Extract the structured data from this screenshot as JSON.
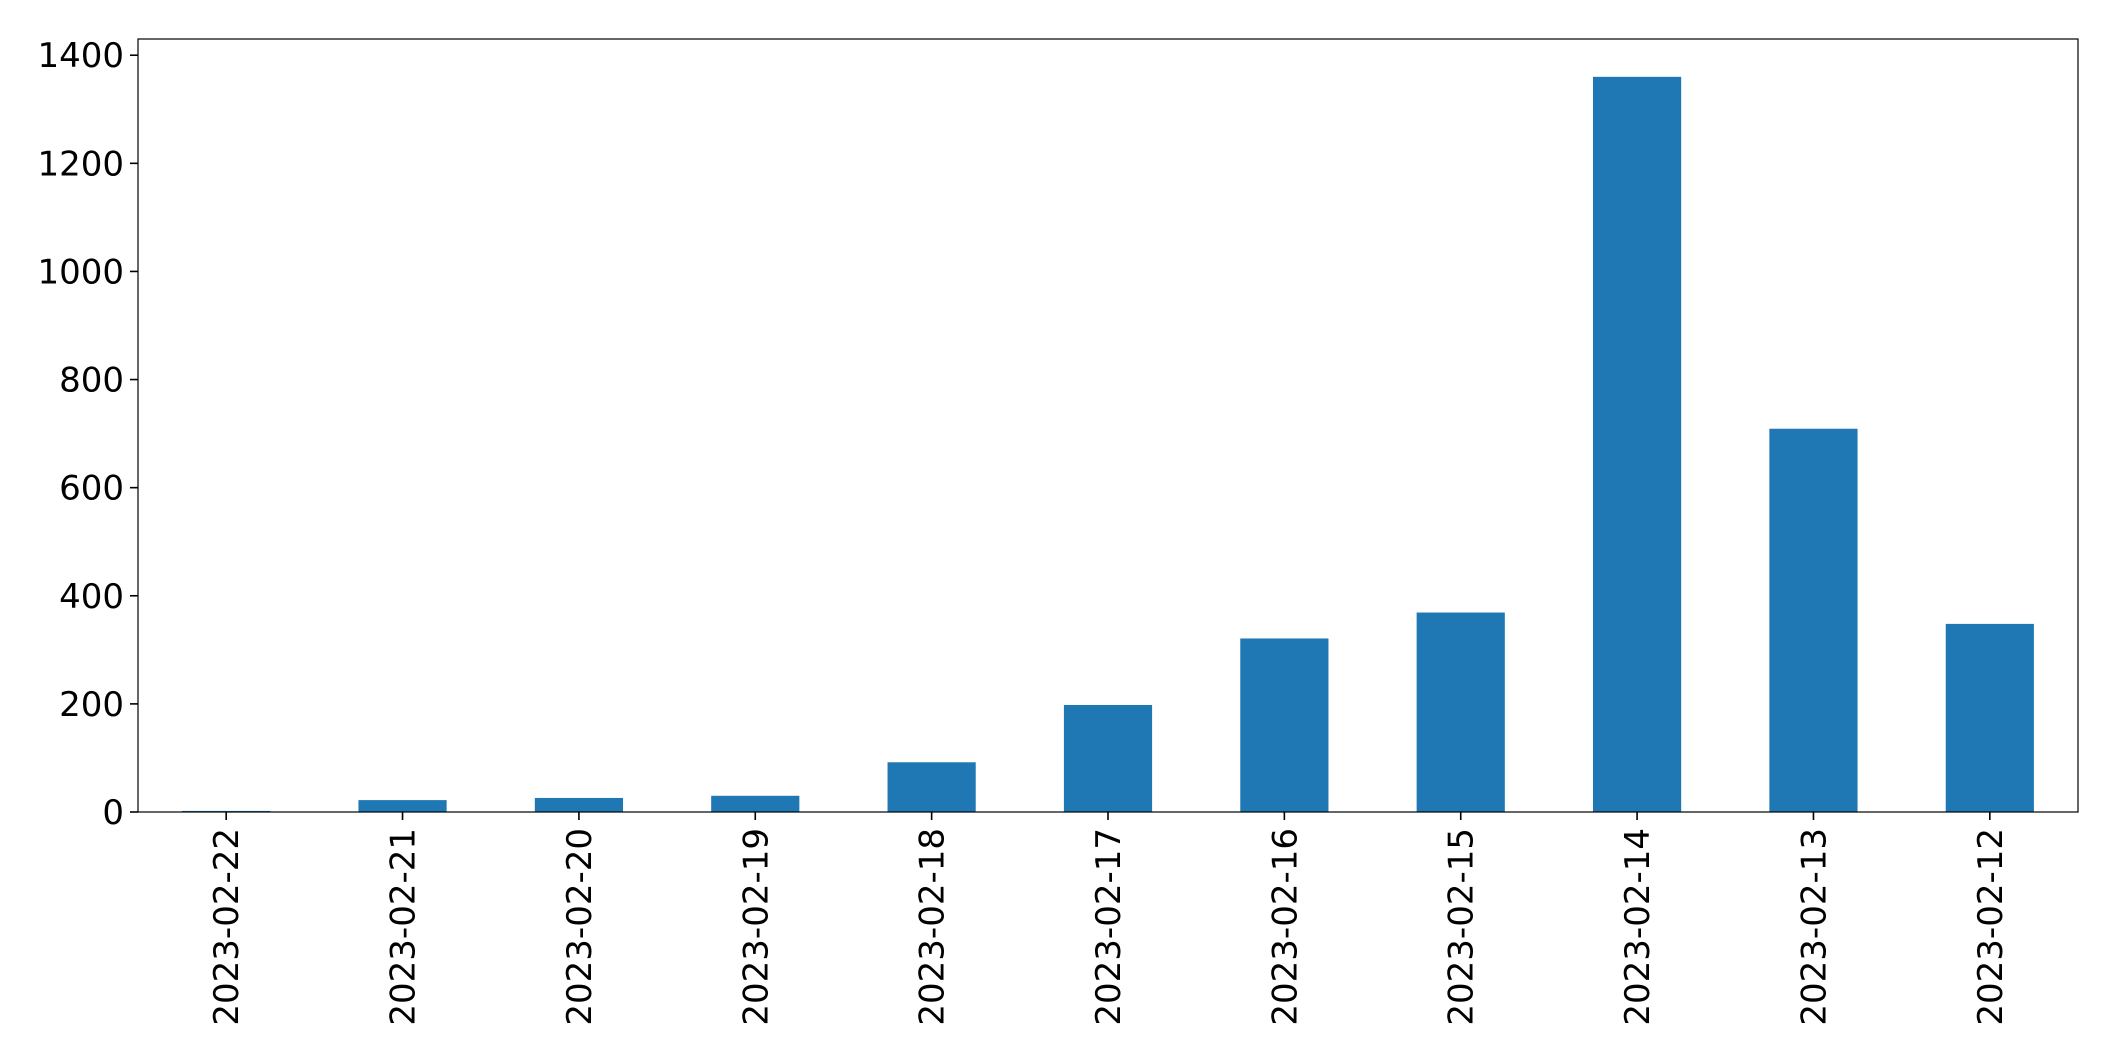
{
  "chart_data": {
    "type": "bar",
    "title": "",
    "xlabel": "",
    "ylabel": "",
    "categories": [
      "2023-02-22",
      "2023-02-21",
      "2023-02-20",
      "2023-02-19",
      "2023-02-18",
      "2023-02-17",
      "2023-02-16",
      "2023-02-15",
      "2023-02-14",
      "2023-02-13",
      "2023-02-12"
    ],
    "values": [
      2,
      22,
      26,
      30,
      92,
      198,
      321,
      369,
      1360,
      709,
      348
    ],
    "ylim": [
      0,
      1430
    ],
    "yticks": [
      "0",
      "200",
      "400",
      "600",
      "800",
      "1000",
      "1200",
      "1400"
    ],
    "grid": false,
    "colors": {
      "bar": "#1f77b4",
      "axis": "#000000",
      "background": "#ffffff"
    }
  }
}
